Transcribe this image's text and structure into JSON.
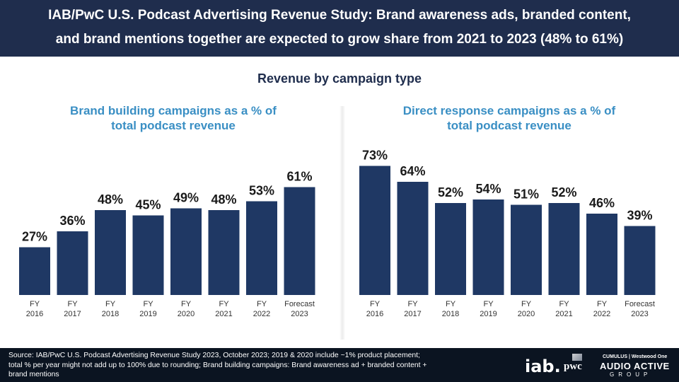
{
  "header": {
    "line1": "IAB/PwC U.S. Podcast Advertising Revenue Study: Brand awareness ads, branded content,",
    "line2": "and brand mentions together are expected to grow share from 2021 to 2023 (48% to 61%)"
  },
  "subtitle": "Revenue by campaign type",
  "chart_data": [
    {
      "type": "bar",
      "title_line1": "Brand building campaigns as a % of",
      "title_line2": "total podcast revenue",
      "categories": [
        [
          "FY",
          "2016"
        ],
        [
          "FY",
          "2017"
        ],
        [
          "FY",
          "2018"
        ],
        [
          "FY",
          "2019"
        ],
        [
          "FY",
          "2020"
        ],
        [
          "FY",
          "2021"
        ],
        [
          "FY",
          "2022"
        ],
        [
          "Forecast",
          "2023"
        ]
      ],
      "values": [
        27,
        36,
        48,
        45,
        49,
        48,
        53,
        61
      ],
      "labels": [
        "27%",
        "36%",
        "48%",
        "45%",
        "49%",
        "48%",
        "53%",
        "61%"
      ],
      "ylim": [
        0,
        80
      ],
      "color": "#1f3864"
    },
    {
      "type": "bar",
      "title_line1": "Direct response campaigns as a % of",
      "title_line2": "total podcast revenue",
      "categories": [
        [
          "FY",
          "2016"
        ],
        [
          "FY",
          "2017"
        ],
        [
          "FY",
          "2018"
        ],
        [
          "FY",
          "2019"
        ],
        [
          "FY",
          "2020"
        ],
        [
          "FY",
          "2021"
        ],
        [
          "FY",
          "2022"
        ],
        [
          "Forecast",
          "2023"
        ]
      ],
      "values": [
        73,
        64,
        52,
        54,
        51,
        52,
        46,
        39
      ],
      "labels": [
        "73%",
        "64%",
        "52%",
        "54%",
        "51%",
        "52%",
        "46%",
        "39%"
      ],
      "ylim": [
        0,
        80
      ],
      "color": "#1f3864"
    }
  ],
  "footer": {
    "source": "Source: IAB/PwC U.S. Podcast Advertising Revenue Study 2023, October 2023; 2019 & 2020 include ~1% product placement; total % per year might not add up to 100% due to rounding; Brand building campaigns: Brand awareness ad + branded content + brand mentions",
    "logo_iab": "iab.",
    "logo_pwc": "pwc",
    "logo_small": "CUMULUS | Westwood One",
    "logo_audio_active": "AUDIO ACTIVE",
    "logo_group": "GROUP"
  }
}
